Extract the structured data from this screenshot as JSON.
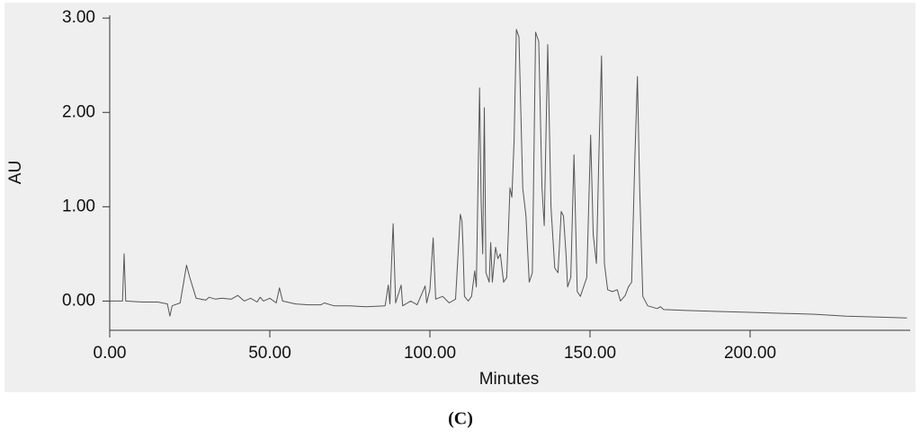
{
  "chart_data": {
    "type": "line",
    "title": "(C)",
    "x_label": "Minutes",
    "y_label": "AU",
    "x": [
      0,
      4,
      4.5,
      5,
      10,
      15,
      18,
      18.8,
      19.5,
      22,
      24,
      25,
      27,
      30,
      31,
      33,
      35,
      38,
      40,
      42,
      44,
      46,
      47,
      48,
      50,
      52,
      53,
      54,
      58,
      62,
      66,
      67,
      70,
      75,
      80,
      86,
      87,
      87.5,
      88.5,
      89.3,
      91,
      91.5,
      94,
      96,
      98.5,
      99,
      100,
      101,
      101.8,
      104,
      106,
      108,
      109.5,
      110,
      110.3,
      110.8,
      112,
      113,
      114,
      114.5,
      115.5,
      116,
      116.5,
      117,
      117.5,
      118.5,
      119,
      119.5,
      120.5,
      121.2,
      122,
      123,
      124,
      125,
      125.6,
      126.3,
      127,
      127.8,
      129,
      130,
      131,
      132,
      133,
      134,
      135,
      135.7,
      136.8,
      137.8,
      139,
      140,
      141,
      141.7,
      142.5,
      143,
      144,
      145,
      146,
      147,
      149,
      150.2,
      151,
      152,
      152.8,
      153.6,
      154.5,
      155.5,
      157,
      158.5,
      159.5,
      161,
      162,
      163,
      164,
      164.8,
      165.5,
      166.5,
      168,
      171,
      172,
      173,
      180,
      190,
      200,
      210,
      220,
      230,
      240,
      249
    ],
    "series": [
      {
        "color": "#555555",
        "values": [
          0,
          0,
          0.5,
          0,
          -0.01,
          -0.01,
          -0.03,
          -0.16,
          -0.05,
          -0.02,
          0.38,
          0.25,
          0.03,
          0.01,
          0.04,
          0.02,
          0.03,
          0.02,
          0.06,
          0,
          0.03,
          -0.01,
          0.04,
          0,
          0.03,
          -0.02,
          0.14,
          0,
          -0.03,
          -0.04,
          -0.04,
          -0.02,
          -0.05,
          -0.05,
          -0.06,
          -0.05,
          0.17,
          -0.03,
          0.82,
          -0.02,
          0.17,
          -0.05,
          0,
          -0.04,
          0.16,
          -0.02,
          0.12,
          0.67,
          0.02,
          0.05,
          -0.02,
          0.02,
          0.92,
          0.85,
          0.6,
          0.05,
          0,
          0.05,
          0.32,
          0.15,
          2.26,
          1.05,
          0.5,
          2.05,
          0.3,
          0.2,
          0.62,
          0.2,
          0.57,
          0.45,
          0.5,
          0.2,
          0.25,
          1.2,
          1.1,
          1.7,
          2.88,
          2.8,
          1.2,
          0.9,
          0.2,
          0.3,
          2.85,
          2.75,
          1.2,
          0.8,
          2.72,
          1,
          0.35,
          0.3,
          0.95,
          0.9,
          0.5,
          0.15,
          0.25,
          1.55,
          0.1,
          0.05,
          0.25,
          1.76,
          0.7,
          0.4,
          1.6,
          2.6,
          0.4,
          0.12,
          0.1,
          0.12,
          0,
          0.06,
          0.15,
          0.2,
          1.5,
          2.38,
          1.2,
          0.05,
          -0.05,
          -0.08,
          -0.06,
          -0.09,
          -0.1,
          -0.11,
          -0.12,
          -0.13,
          -0.14,
          -0.16,
          -0.17,
          -0.18
        ]
      }
    ],
    "xlim": [
      0,
      250
    ],
    "ylim": [
      -0.31,
      3.03
    ],
    "xticks": [
      {
        "value": 0,
        "label": "0.00"
      },
      {
        "value": 50,
        "label": "50.00"
      },
      {
        "value": 100,
        "label": "100.00"
      },
      {
        "value": 150,
        "label": "150.00"
      },
      {
        "value": 200,
        "label": "200.00"
      }
    ],
    "yticks": [
      {
        "value": 0,
        "label": "0.00"
      },
      {
        "value": 1,
        "label": "1.00"
      },
      {
        "value": 2,
        "label": "2.00"
      },
      {
        "value": 3,
        "label": "3.00"
      }
    ]
  }
}
